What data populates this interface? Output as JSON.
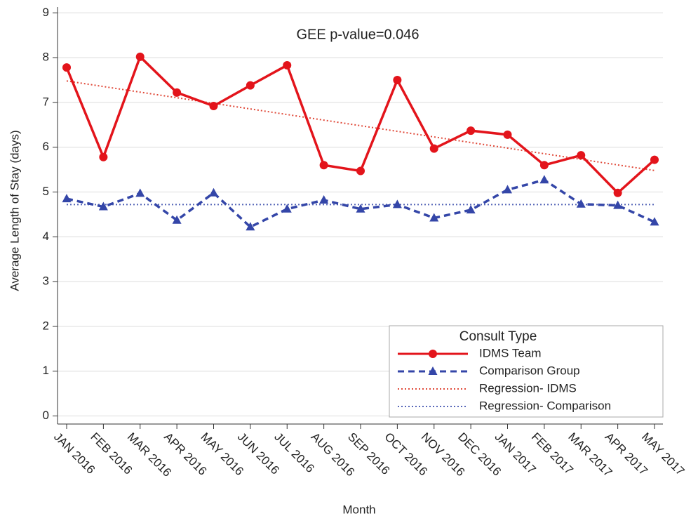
{
  "chart_data": {
    "type": "line",
    "y_label": "Average Length of Stay (days)",
    "x_label": "Month",
    "annotation": "GEE p-value=0.046",
    "categories": [
      "JAN 2016",
      "FEB 2016",
      "MAR 2016",
      "APR 2016",
      "MAY 2016",
      "JUN 2016",
      "JUL 2016",
      "AUG 2016",
      "SEP 2016",
      "OCT 2016",
      "NOV 2016",
      "DEC 2016",
      "JAN 2017",
      "FEB 2017",
      "MAR 2017",
      "APR 2017",
      "MAY 2017"
    ],
    "series": [
      {
        "name": "IDMS Team",
        "color": "#e3141b",
        "dash": "solid",
        "marker": "circle",
        "values": [
          7.78,
          5.78,
          8.02,
          7.22,
          6.92,
          7.38,
          7.83,
          5.6,
          5.47,
          7.5,
          5.97,
          6.37,
          6.28,
          5.6,
          5.82,
          4.98,
          5.72
        ]
      },
      {
        "name": "Comparison Group",
        "color": "#3446a8",
        "dash": "dashed",
        "marker": "triangle",
        "values": [
          4.85,
          4.67,
          4.97,
          4.37,
          4.98,
          4.22,
          4.62,
          4.82,
          4.62,
          4.72,
          4.42,
          4.6,
          5.05,
          5.27,
          4.73,
          4.7,
          4.33
        ]
      },
      {
        "name": "Regression- IDMS",
        "color": "#e04a3a",
        "dash": "dotted",
        "marker": "none",
        "values": [
          7.48,
          7.355,
          7.23,
          7.105,
          6.98,
          6.855,
          6.73,
          6.605,
          6.48,
          6.355,
          6.23,
          6.105,
          5.98,
          5.855,
          5.73,
          5.605,
          5.48
        ]
      },
      {
        "name": "Regression- Comparison",
        "color": "#5565b8",
        "dash": "dotted",
        "marker": "none",
        "values": [
          4.72,
          4.72,
          4.72,
          4.72,
          4.72,
          4.72,
          4.72,
          4.72,
          4.72,
          4.72,
          4.72,
          4.72,
          4.72,
          4.72,
          4.72,
          4.72,
          4.72
        ]
      }
    ],
    "legend_title": "Consult Type",
    "legend": "lower right",
    "ylim": [
      -0.18,
      9.13
    ],
    "yticks": [
      0,
      1,
      2,
      3,
      4,
      5,
      6,
      7,
      8,
      9
    ],
    "grid": true
  }
}
